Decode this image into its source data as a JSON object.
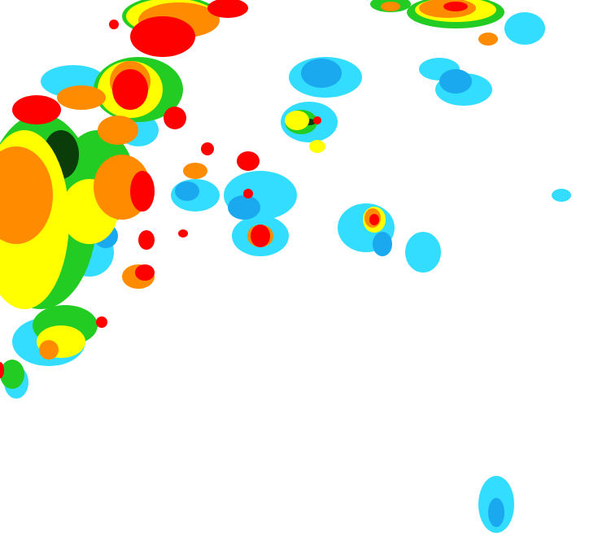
{
  "map": {
    "type": "precipitation-radar",
    "background": "#ffffff",
    "palette": {
      "light_blue": "#33ddff",
      "blue": "#1aa8ee",
      "green": "#22cc22",
      "dark_green": "#0b3d0b",
      "yellow": "#ffff00",
      "orange": "#ff8c00",
      "red": "#ff0000"
    }
  }
}
